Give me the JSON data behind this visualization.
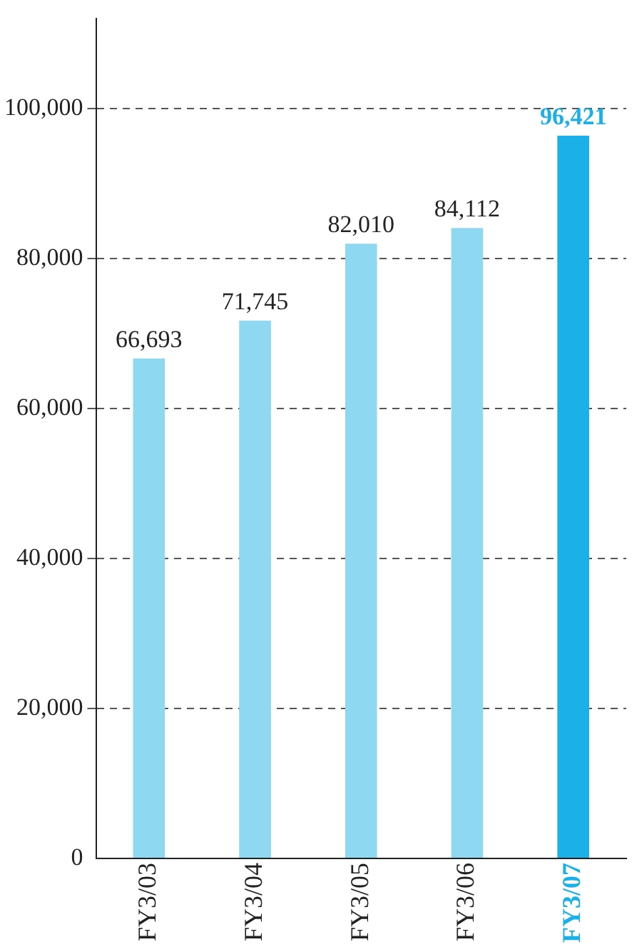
{
  "chart_data": {
    "type": "bar",
    "categories": [
      "FY3/03",
      "FY3/04",
      "FY3/05",
      "FY3/06",
      "FY3/07"
    ],
    "values": [
      66693,
      71745,
      82010,
      84112,
      96421
    ],
    "colors": [
      "#8fd8f2",
      "#8fd8f2",
      "#8fd8f2",
      "#8fd8f2",
      "#1cb0e8"
    ],
    "ylim": [
      0,
      112000
    ],
    "yticks": [
      {
        "value": 0,
        "label": "0"
      },
      {
        "value": 20000,
        "label": "20,000"
      },
      {
        "value": 40000,
        "label": "40,000"
      },
      {
        "value": 60000,
        "label": "60,000"
      },
      {
        "value": 80000,
        "label": "80,000"
      },
      {
        "value": 100000,
        "label": "100,000"
      }
    ],
    "value_labels": [
      "66,693",
      "71,745",
      "82,010",
      "84,112",
      "96,421"
    ],
    "grid": "y",
    "legend": false
  }
}
